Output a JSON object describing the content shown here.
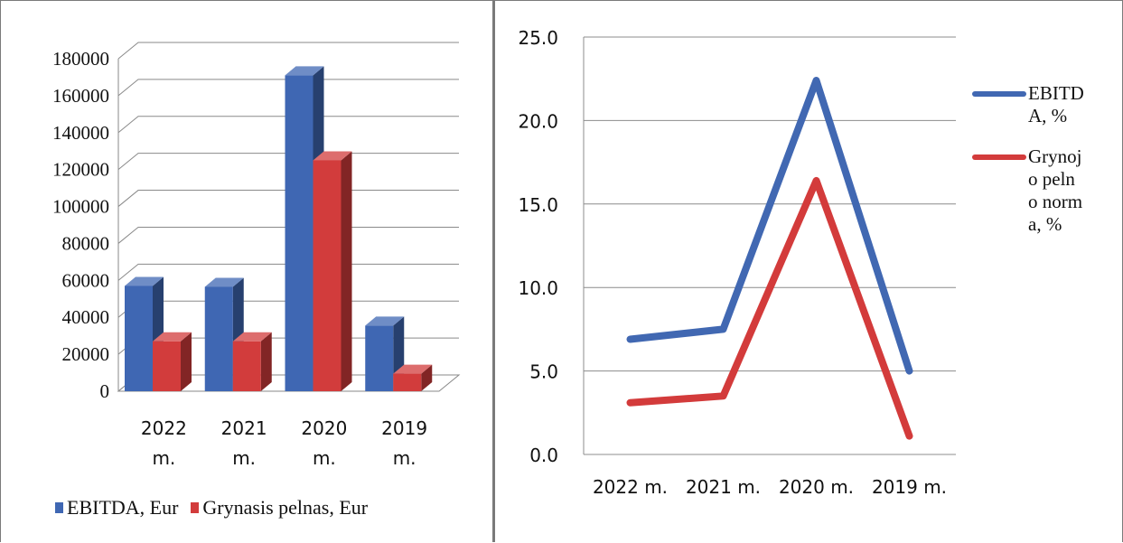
{
  "chart_data": [
    {
      "type": "bar",
      "style": "3d-clustered-column",
      "categories": [
        "2022 m.",
        "2021 m.",
        "2020 m.",
        "2019 m."
      ],
      "series": [
        {
          "name": "EBITDA, Eur",
          "color": "#3f67b3",
          "values": [
            57000,
            56500,
            171000,
            35500
          ]
        },
        {
          "name": "Grynasis pelnas, Eur",
          "color": "#d23c3c",
          "values": [
            27000,
            27000,
            125000,
            9500
          ]
        }
      ],
      "ylim": [
        0,
        180000
      ],
      "yticks": [
        "0",
        "20000",
        "40000",
        "60000",
        "80000",
        "100000",
        "120000",
        "140000",
        "160000",
        "180000"
      ],
      "grid": true,
      "legend_position": "bottom"
    },
    {
      "type": "line",
      "categories": [
        "2022 m.",
        "2021 m.",
        "2020 m.",
        "2019 m."
      ],
      "series": [
        {
          "name": "EBITDA, %",
          "color": "#4168b2",
          "values": [
            6.9,
            7.5,
            22.4,
            5.0
          ]
        },
        {
          "name": "Grynojo pelno norma, %",
          "color": "#d33b3b",
          "values": [
            3.1,
            3.5,
            16.4,
            1.1
          ]
        }
      ],
      "ylim": [
        0,
        25
      ],
      "yticks": [
        "0.0",
        "5.0",
        "10.0",
        "15.0",
        "20.0",
        "25.0"
      ],
      "grid": true,
      "legend_position": "right"
    }
  ]
}
